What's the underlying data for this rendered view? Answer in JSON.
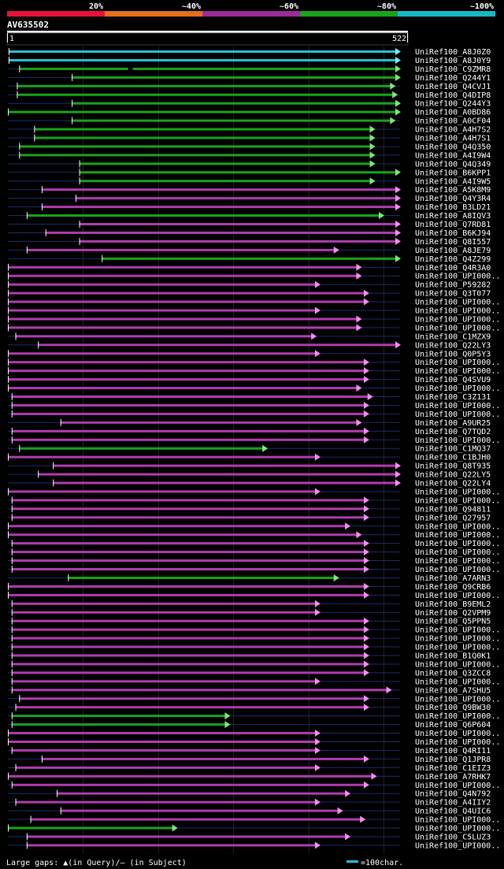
{
  "chart_data": {
    "type": "alignment-overview",
    "query_id": "AV635502",
    "axis": {
      "start_label": "1",
      "end_label": "522",
      "query_length": 522
    },
    "identity_legend": [
      {
        "label": "20%",
        "color": "#e8113a"
      },
      {
        "label": "~40%",
        "color": "#e86f1a"
      },
      {
        "label": "~60%",
        "color": "#9b2b9b"
      },
      {
        "label": "~80%",
        "color": "#1aa31a"
      },
      {
        "label": "~100%",
        "color": "#17b8c4"
      }
    ],
    "bar_colors": {
      "query_line": "#1c2c6e",
      "cyan_fill": "#25c4d2",
      "cyan_head": "#7fe9f0",
      "green_fill": "#1aa31a",
      "green_head": "#7fe57f",
      "purple_fill": "#b03cb0",
      "purple_head": "#ef8fef",
      "gap_marker": "#ffff9a"
    },
    "hits": [
      {
        "name": "UniRef100_A8J0Z0",
        "c": "cyan",
        "s": 1,
        "e": 522,
        "gq": [],
        "gs": []
      },
      {
        "name": "UniRef100_A8J0Y9",
        "c": "cyan",
        "s": 1,
        "e": 522,
        "gq": [],
        "gs": []
      },
      {
        "name": "UniRef100_C9ZMR8",
        "c": "green",
        "s": 15,
        "e": 522,
        "gq": [],
        "gs": [
          160
        ]
      },
      {
        "name": "UniRef100_Q244Y1",
        "c": "green",
        "s": 85,
        "e": 522,
        "gq": [],
        "gs": []
      },
      {
        "name": "UniRef100_Q4CVJ1",
        "c": "green",
        "s": 12,
        "e": 515,
        "gq": [],
        "gs": []
      },
      {
        "name": "UniRef100_Q4DIP8",
        "c": "green",
        "s": 12,
        "e": 518,
        "gq": [],
        "gs": []
      },
      {
        "name": "UniRef100_Q244Y3",
        "c": "green",
        "s": 85,
        "e": 522,
        "gq": [],
        "gs": []
      },
      {
        "name": "UniRef100_A0BD86",
        "c": "green",
        "s": 0,
        "e": 522,
        "gq": [],
        "gs": []
      },
      {
        "name": "UniRef100_A0CF04",
        "c": "green",
        "s": 85,
        "e": 515,
        "gq": [],
        "gs": []
      },
      {
        "name": "UniRef100_A4H7S2",
        "c": "green",
        "s": 35,
        "e": 488,
        "gq": [],
        "gs": []
      },
      {
        "name": "UniRef100_A4H7S1",
        "c": "green",
        "s": 35,
        "e": 488,
        "gq": [],
        "gs": []
      },
      {
        "name": "UniRef100_Q4Q350",
        "c": "green",
        "s": 15,
        "e": 488,
        "gq": [],
        "gs": []
      },
      {
        "name": "UniRef100_A4I9W4",
        "c": "green",
        "s": 15,
        "e": 488,
        "gq": [],
        "gs": []
      },
      {
        "name": "UniRef100_Q4Q349",
        "c": "green",
        "s": 95,
        "e": 488,
        "gq": [],
        "gs": []
      },
      {
        "name": "UniRef100_B6KPP1",
        "c": "green",
        "s": 95,
        "e": 522,
        "gq": [],
        "gs": []
      },
      {
        "name": "UniRef100_A4I9W5",
        "c": "green",
        "s": 95,
        "e": 488,
        "gq": [],
        "gs": []
      },
      {
        "name": "UniRef100_A5K8M9",
        "c": "purple",
        "s": 45,
        "e": 522,
        "gq": [],
        "gs": []
      },
      {
        "name": "UniRef100_Q4Y3R4",
        "c": "purple",
        "s": 90,
        "e": 522,
        "gq": [],
        "gs": []
      },
      {
        "name": "UniRef100_B3LD21",
        "c": "purple",
        "s": 45,
        "e": 522,
        "gq": [],
        "gs": []
      },
      {
        "name": "UniRef100_A8IQV3",
        "c": "green",
        "s": 25,
        "e": 500,
        "gq": [],
        "gs": []
      },
      {
        "name": "UniRef100_Q7RD81",
        "c": "purple",
        "s": 95,
        "e": 522,
        "gq": [],
        "gs": []
      },
      {
        "name": "UniRef100_B6KJ94",
        "c": "purple",
        "s": 50,
        "e": 522,
        "gq": [],
        "gs": []
      },
      {
        "name": "UniRef100_Q8I557",
        "c": "purple",
        "s": 95,
        "e": 522,
        "gq": [],
        "gs": []
      },
      {
        "name": "UniRef100_A8JE79",
        "c": "purple",
        "s": 25,
        "e": 440,
        "gq": [],
        "gs": []
      },
      {
        "name": "UniRef100_Q4Z299",
        "c": "green",
        "s": 125,
        "e": 522,
        "gq": [],
        "gs": []
      },
      {
        "name": "UniRef100_Q4R3A0",
        "c": "purple",
        "s": 0,
        "e": 470,
        "gq": [],
        "gs": []
      },
      {
        "name": "UniRef100_UPI000..",
        "c": "purple",
        "s": 0,
        "e": 470,
        "gq": [],
        "gs": []
      },
      {
        "name": "UniRef100_P59282",
        "c": "purple",
        "s": 0,
        "e": 415,
        "gq": [],
        "gs": []
      },
      {
        "name": "UniRef100_Q3T077",
        "c": "purple",
        "s": 0,
        "e": 480,
        "gq": [],
        "gs": []
      },
      {
        "name": "UniRef100_UPI000..",
        "c": "purple",
        "s": 0,
        "e": 480,
        "gq": [],
        "gs": []
      },
      {
        "name": "UniRef100_UPI000..",
        "c": "purple",
        "s": 0,
        "e": 415,
        "gq": [],
        "gs": []
      },
      {
        "name": "UniRef100_UPI000..",
        "c": "purple",
        "s": 0,
        "e": 470,
        "gq": [],
        "gs": []
      },
      {
        "name": "UniRef100_UPI000..",
        "c": "purple",
        "s": 0,
        "e": 470,
        "gq": [],
        "gs": []
      },
      {
        "name": "UniRef100_C1MZX9",
        "c": "purple",
        "s": 10,
        "e": 410,
        "gq": [],
        "gs": []
      },
      {
        "name": "UniRef100_Q22LY3",
        "c": "purple",
        "s": 40,
        "e": 522,
        "gq": [],
        "gs": []
      },
      {
        "name": "UniRef100_Q0P5Y3",
        "c": "purple",
        "s": 0,
        "e": 415,
        "gq": [],
        "gs": []
      },
      {
        "name": "UniRef100_UPI000..",
        "c": "purple",
        "s": 0,
        "e": 480,
        "gq": [],
        "gs": []
      },
      {
        "name": "UniRef100_UPI000..",
        "c": "purple",
        "s": 0,
        "e": 480,
        "gq": [],
        "gs": []
      },
      {
        "name": "UniRef100_Q4SVU9",
        "c": "purple",
        "s": 0,
        "e": 480,
        "gq": [],
        "gs": []
      },
      {
        "name": "UniRef100_UPI000..",
        "c": "purple",
        "s": 0,
        "e": 470,
        "gq": [],
        "gs": []
      },
      {
        "name": "UniRef100_C3Z131",
        "c": "purple",
        "s": 5,
        "e": 485,
        "gq": [],
        "gs": []
      },
      {
        "name": "UniRef100_UPI000..",
        "c": "purple",
        "s": 5,
        "e": 480,
        "gq": [],
        "gs": []
      },
      {
        "name": "UniRef100_UPI000..",
        "c": "purple",
        "s": 5,
        "e": 480,
        "gq": [],
        "gs": []
      },
      {
        "name": "UniRef100_A9UR25",
        "c": "purple",
        "s": 70,
        "e": 470,
        "gq": [],
        "gs": []
      },
      {
        "name": "UniRef100_Q7TQD2",
        "c": "purple",
        "s": 5,
        "e": 480,
        "gq": [],
        "gs": []
      },
      {
        "name": "UniRef100_UPI000..",
        "c": "purple",
        "s": 5,
        "e": 480,
        "gq": [],
        "gs": []
      },
      {
        "name": "UniRef100_C1MQ37",
        "c": "green",
        "s": 15,
        "e": 345,
        "gq": [],
        "gs": []
      },
      {
        "name": "UniRef100_C1BJH0",
        "c": "purple",
        "s": 0,
        "e": 415,
        "gq": [],
        "gs": []
      },
      {
        "name": "UniRef100_Q8T935",
        "c": "purple",
        "s": 60,
        "e": 522,
        "gq": [],
        "gs": []
      },
      {
        "name": "UniRef100_Q22LY5",
        "c": "purple",
        "s": 40,
        "e": 522,
        "gq": [],
        "gs": []
      },
      {
        "name": "UniRef100_Q22LY4",
        "c": "purple",
        "s": 60,
        "e": 522,
        "gq": [],
        "gs": []
      },
      {
        "name": "UniRef100_UPI000..",
        "c": "purple",
        "s": 0,
        "e": 415,
        "gq": [],
        "gs": []
      },
      {
        "name": "UniRef100_UPI000..",
        "c": "purple",
        "s": 5,
        "e": 480,
        "gq": [],
        "gs": []
      },
      {
        "name": "UniRef100_Q94811",
        "c": "purple",
        "s": 5,
        "e": 480,
        "gq": [],
        "gs": []
      },
      {
        "name": "UniRef100_Q27957",
        "c": "purple",
        "s": 5,
        "e": 480,
        "gq": [],
        "gs": []
      },
      {
        "name": "UniRef100_UPI000..",
        "c": "purple",
        "s": 0,
        "e": 455,
        "gq": [],
        "gs": []
      },
      {
        "name": "UniRef100_UPI000..",
        "c": "purple",
        "s": 0,
        "e": 470,
        "gq": [],
        "gs": []
      },
      {
        "name": "UniRef100_UPI000..",
        "c": "purple",
        "s": 5,
        "e": 480,
        "gq": [],
        "gs": []
      },
      {
        "name": "UniRef100_UPI000..",
        "c": "purple",
        "s": 5,
        "e": 480,
        "gq": [],
        "gs": []
      },
      {
        "name": "UniRef100_UPI000..",
        "c": "purple",
        "s": 5,
        "e": 480,
        "gq": [],
        "gs": []
      },
      {
        "name": "UniRef100_UPI000..",
        "c": "purple",
        "s": 5,
        "e": 480,
        "gq": [],
        "gs": []
      },
      {
        "name": "UniRef100_A7ARN3",
        "c": "green",
        "s": 80,
        "e": 440,
        "gq": [],
        "gs": []
      },
      {
        "name": "UniRef100_Q9CRB6",
        "c": "purple",
        "s": 0,
        "e": 480,
        "gq": [],
        "gs": []
      },
      {
        "name": "UniRef100_UPI000..",
        "c": "purple",
        "s": 0,
        "e": 480,
        "gq": [],
        "gs": []
      },
      {
        "name": "UniRef100_B9EML2",
        "c": "purple",
        "s": 5,
        "e": 415,
        "gq": [],
        "gs": []
      },
      {
        "name": "UniRef100_Q2VPM9",
        "c": "purple",
        "s": 5,
        "e": 415,
        "gq": [],
        "gs": []
      },
      {
        "name": "UniRef100_Q5PPN5",
        "c": "purple",
        "s": 5,
        "e": 480,
        "gq": [],
        "gs": []
      },
      {
        "name": "UniRef100_UPI000..",
        "c": "purple",
        "s": 5,
        "e": 480,
        "gq": [],
        "gs": []
      },
      {
        "name": "UniRef100_UPI000..",
        "c": "purple",
        "s": 5,
        "e": 480,
        "gq": [],
        "gs": []
      },
      {
        "name": "UniRef100_UPI000..",
        "c": "purple",
        "s": 5,
        "e": 480,
        "gq": [],
        "gs": []
      },
      {
        "name": "UniRef100_B1Q0K1",
        "c": "purple",
        "s": 5,
        "e": 480,
        "gq": [],
        "gs": []
      },
      {
        "name": "UniRef100_UPI000..",
        "c": "purple",
        "s": 5,
        "e": 480,
        "gq": [],
        "gs": []
      },
      {
        "name": "UniRef100_Q3ZCC8",
        "c": "purple",
        "s": 5,
        "e": 480,
        "gq": [],
        "gs": []
      },
      {
        "name": "UniRef100_UPI000..",
        "c": "purple",
        "s": 5,
        "e": 415,
        "gq": [],
        "gs": []
      },
      {
        "name": "UniRef100_A7SHU5",
        "c": "purple",
        "s": 5,
        "e": 510,
        "gq": [],
        "gs": []
      },
      {
        "name": "UniRef100_UPI000..",
        "c": "purple",
        "s": 15,
        "e": 480,
        "gq": [],
        "gs": []
      },
      {
        "name": "UniRef100_Q9BW30",
        "c": "purple",
        "s": 10,
        "e": 480,
        "gq": [],
        "gs": []
      },
      {
        "name": "UniRef100_UPI000..",
        "c": "green",
        "s": 5,
        "e": 295,
        "gq": [],
        "gs": []
      },
      {
        "name": "UniRef100_Q6P604",
        "c": "green",
        "s": 5,
        "e": 295,
        "gq": [],
        "gs": []
      },
      {
        "name": "UniRef100_UPI000..",
        "c": "purple",
        "s": 0,
        "e": 415,
        "gq": [],
        "gs": []
      },
      {
        "name": "UniRef100_UPI000..",
        "c": "purple",
        "s": 0,
        "e": 415,
        "gq": [],
        "gs": []
      },
      {
        "name": "UniRef100_Q4RI11",
        "c": "purple",
        "s": 5,
        "e": 415,
        "gq": [],
        "gs": []
      },
      {
        "name": "UniRef100_Q1JPR8",
        "c": "purple",
        "s": 45,
        "e": 480,
        "gq": [],
        "gs": []
      },
      {
        "name": "UniRef100_C1EIZ3",
        "c": "purple",
        "s": 10,
        "e": 415,
        "gq": [],
        "gs": []
      },
      {
        "name": "UniRef100_A7RHK7",
        "c": "purple",
        "s": 0,
        "e": 490,
        "gq": [],
        "gs": []
      },
      {
        "name": "UniRef100_UPI000..",
        "c": "purple",
        "s": 5,
        "e": 480,
        "gq": [],
        "gs": []
      },
      {
        "name": "UniRef100_Q4N792",
        "c": "purple",
        "s": 65,
        "e": 455,
        "gq": [],
        "gs": []
      },
      {
        "name": "UniRef100_A4IIY2",
        "c": "purple",
        "s": 10,
        "e": 415,
        "gq": [],
        "gs": []
      },
      {
        "name": "UniRef100_Q4UIC6",
        "c": "purple",
        "s": 70,
        "e": 445,
        "gq": [],
        "gs": []
      },
      {
        "name": "UniRef100_UPI000..",
        "c": "purple",
        "s": 30,
        "e": 475,
        "gq": [],
        "gs": []
      },
      {
        "name": "UniRef100_UPI000..",
        "c": "green",
        "s": 0,
        "e": 225,
        "gq": [],
        "gs": []
      },
      {
        "name": "UniRef100_C5LUZ3",
        "c": "purple",
        "s": 25,
        "e": 455,
        "gq": [],
        "gs": []
      },
      {
        "name": "UniRef100_UPI000..",
        "c": "purple",
        "s": 25,
        "e": 415,
        "gq": [],
        "gs": []
      }
    ],
    "footer": {
      "gaps_text": "Large gaps: ▲(in Query)/— (in Subject)",
      "scale_text": "=100char."
    }
  }
}
